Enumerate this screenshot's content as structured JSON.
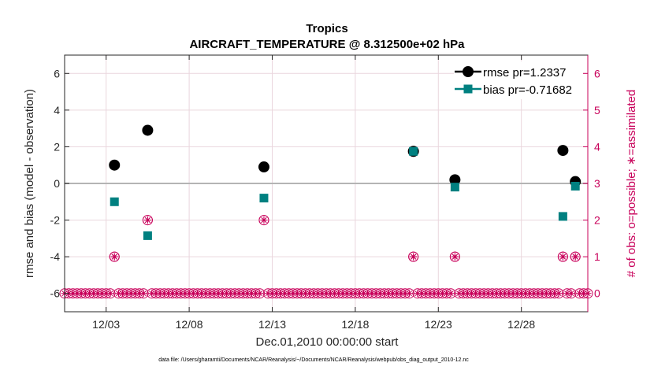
{
  "chart_data": {
    "type": "scatter",
    "title_line1": "Tropics",
    "title_line2": "AIRCRAFT_TEMPERATURE @ 8.312500e+02 hPa",
    "xlabel": "Dec.01,2010 00:00:00 start",
    "ylabel_left": "rmse and bias (model - observation)",
    "ylabel_right": "# of obs: o=possible; ∗=assimilated",
    "footer": "data file: /Users/gharamti/Documents/NCAR/Reanalysis/~/Documents/NCAR/Reanalysis/webpub/obs_diag_output_2010-12.nc",
    "xlim": [
      1.0,
      32.5
    ],
    "ylim_left": [
      -7,
      7
    ],
    "ylim_right": [
      -0.5,
      6.5
    ],
    "x_ticks": [
      {
        "value": 3.5,
        "label": "12/03"
      },
      {
        "value": 8.5,
        "label": "12/08"
      },
      {
        "value": 13.5,
        "label": "12/13"
      },
      {
        "value": 18.5,
        "label": "12/18"
      },
      {
        "value": 23.5,
        "label": "12/23"
      },
      {
        "value": 28.5,
        "label": "12/28"
      }
    ],
    "y_ticks_left": [
      -6,
      -4,
      -2,
      0,
      2,
      4,
      6
    ],
    "y_tick_labels_left": [
      "-6",
      "-4",
      "-2",
      "0",
      "2",
      "4",
      "6"
    ],
    "y_ticks_right": [
      0,
      1,
      2,
      3,
      4,
      5,
      6
    ],
    "y_tick_labels_right": [
      "0",
      "1",
      "2",
      "3",
      "4",
      "5",
      "6"
    ],
    "colors": {
      "rmse": "#000000",
      "bias": "#008080",
      "obs": "#c8005a",
      "zero_line": "#b4b4b4",
      "grid": "#ead6dd"
    },
    "series": [
      {
        "name": "rmse pr=1.2337",
        "x": [
          4.0,
          6.0,
          13.0,
          22.0,
          24.5,
          31.0,
          31.75
        ],
        "y": [
          1.0,
          2.9,
          0.9,
          1.75,
          0.2,
          1.8,
          0.1
        ]
      },
      {
        "name": "bias pr=-0.71682",
        "x": [
          4.0,
          6.0,
          13.0,
          22.0,
          24.5,
          31.0,
          31.75
        ],
        "y": [
          -1.0,
          -2.85,
          -0.8,
          1.75,
          -0.2,
          -1.8,
          -0.15
        ]
      }
    ],
    "obs_counts": {
      "x_start": 1.0,
      "x_end": 32.5,
      "x_step": 0.25,
      "nonzero": [
        {
          "x": 4.0,
          "count": 1
        },
        {
          "x": 6.0,
          "count": 2
        },
        {
          "x": 13.0,
          "count": 2
        },
        {
          "x": 22.0,
          "count": 1
        },
        {
          "x": 24.5,
          "count": 1
        },
        {
          "x": 31.0,
          "count": 1
        },
        {
          "x": 31.75,
          "count": 1
        }
      ]
    }
  }
}
